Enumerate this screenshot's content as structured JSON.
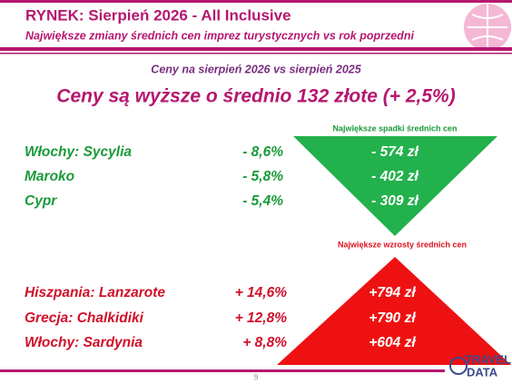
{
  "header": {
    "title": "RYNEK: Sierpień 2026 - All Inclusive",
    "subtitle": "Największe zmiany średnich cen imprez turystycznych vs rok poprzedni"
  },
  "summary": {
    "caption": "Ceny na sierpień 2026 vs sierpień 2025",
    "headline": "Ceny są wyższe o średnio 132 złote (+ 2,5%)"
  },
  "decreases": {
    "title": "Największe spadki średnich cen",
    "rows": [
      {
        "destination": "Włochy: Sycylia",
        "change": "- 8,6%",
        "amount": "- 574 zł"
      },
      {
        "destination": "Maroko",
        "change": "- 5,8%",
        "amount": "- 402 zł"
      },
      {
        "destination": "Cypr",
        "change": "- 5,4%",
        "amount": "- 309 zł"
      }
    ]
  },
  "increases": {
    "title": "Największe wzrosty średnich cen",
    "rows": [
      {
        "destination": "Hiszpania: Lanzarote",
        "change": "+ 14,6%",
        "amount": "+794 zł"
      },
      {
        "destination": "Grecja: Chalkidiki",
        "change": "+ 12,8%",
        "amount": "+790 zł"
      },
      {
        "destination": "Włochy: Sardynia",
        "change": "+ 8,8%",
        "amount": "+604 zł"
      }
    ]
  },
  "footer": {
    "page": "9",
    "logo_top": "TRAVEL",
    "logo_bottom": "DATA"
  }
}
